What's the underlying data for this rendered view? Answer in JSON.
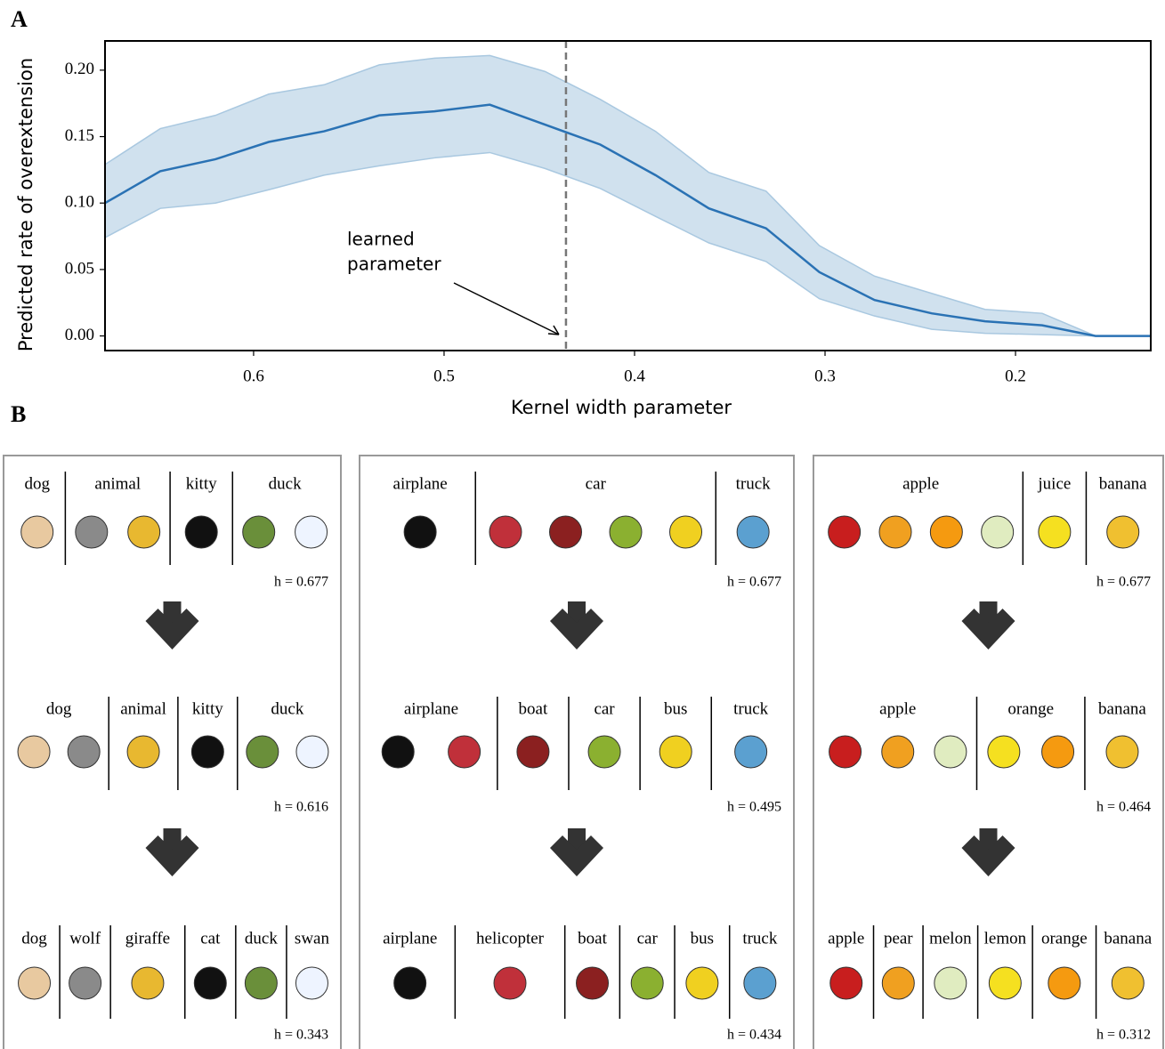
{
  "panel_label_a": "A",
  "chart_data": {
    "type": "line",
    "x_label": "Kernel width parameter",
    "y_label": "Predicted rate of overextension",
    "x": [
      0.678,
      0.649,
      0.62,
      0.592,
      0.563,
      0.534,
      0.505,
      0.476,
      0.447,
      0.418,
      0.389,
      0.361,
      0.331,
      0.303,
      0.274,
      0.244,
      0.216,
      0.186,
      0.158,
      0.129
    ],
    "series": [
      {
        "color": "#2a72b4",
        "band_color": "#a9c8e0",
        "values": [
          0.1,
          0.124,
          0.133,
          0.146,
          0.154,
          0.166,
          0.169,
          0.174,
          0.159,
          0.144,
          0.121,
          0.096,
          0.081,
          0.048,
          0.027,
          0.017,
          0.011,
          0.008,
          0.0,
          0.0
        ],
        "upper": [
          0.129,
          0.156,
          0.166,
          0.182,
          0.189,
          0.204,
          0.209,
          0.211,
          0.199,
          0.178,
          0.154,
          0.123,
          0.109,
          0.068,
          0.045,
          0.032,
          0.02,
          0.017,
          0.0,
          0.0
        ],
        "lower": [
          0.074,
          0.096,
          0.1,
          0.11,
          0.121,
          0.128,
          0.134,
          0.138,
          0.126,
          0.111,
          0.09,
          0.07,
          0.056,
          0.028,
          0.015,
          0.005,
          0.002,
          0.001,
          0.0,
          0.0
        ]
      }
    ],
    "xlim": [
      0.678,
      0.129
    ],
    "xticks": [
      0.6,
      0.5,
      0.4,
      0.3,
      0.2
    ],
    "ylim": [
      -0.011,
      0.222
    ],
    "yticks": [
      {
        "value": 0,
        "label": "0.00"
      },
      {
        "value": 0.05,
        "label": "0.05"
      },
      {
        "value": 0.1,
        "label": "0.10"
      },
      {
        "value": 0.15,
        "label": "0.15"
      },
      {
        "value": 0.2,
        "label": "0.20"
      }
    ],
    "vline": 0.436,
    "annotation": [
      "learned",
      "parameter"
    ]
  },
  "panel_b": {
    "label": "B",
    "panels": [
      {
        "rows": [
          {
            "groups": [
              "dog",
              "animal",
              "kitty",
              "duck"
            ],
            "h": "h = 0.677"
          },
          {
            "groups": [
              "dog",
              "animal",
              "kitty",
              "duck"
            ],
            "h": "h = 0.616"
          },
          {
            "groups": [
              "dog",
              "wolf",
              "giraffe",
              "cat",
              "duck",
              "swan"
            ],
            "h": "h = 0.343"
          }
        ]
      },
      {
        "rows": [
          {
            "groups": [
              "airplane",
              "car",
              "truck"
            ],
            "h": "h = 0.677"
          },
          {
            "groups": [
              "airplane",
              "boat",
              "car",
              "bus",
              "truck"
            ],
            "h": "h = 0.495"
          },
          {
            "groups": [
              "airplane",
              "helicopter",
              "boat",
              "car",
              "bus",
              "truck"
            ],
            "h": "h = 0.434"
          }
        ]
      },
      {
        "rows": [
          {
            "groups": [
              "apple",
              "juice",
              "banana"
            ],
            "h": "h = 0.677"
          },
          {
            "groups": [
              "apple",
              "orange",
              "banana"
            ],
            "h": "h = 0.464"
          },
          {
            "groups": [
              "apple",
              "pear",
              "melon",
              "lemon",
              "orange",
              "banana"
            ],
            "h": "h = 0.312"
          }
        ]
      }
    ]
  }
}
